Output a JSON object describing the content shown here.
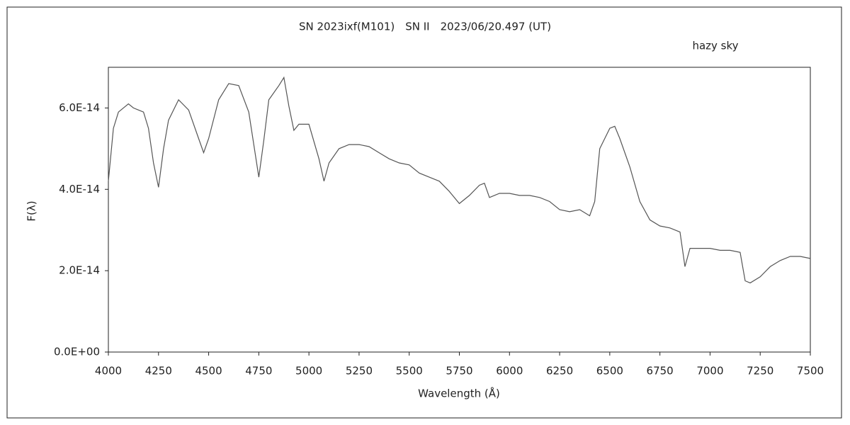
{
  "chart_data": {
    "type": "line",
    "title": "SN 2023ixf(M101)　SN II　2023/06/20.497 (UT)",
    "annotation": "hazy sky",
    "x_label": "Wavelength (Å)",
    "y_label": "F(λ)",
    "xlim": [
      4000,
      7500
    ],
    "xticks": [
      4000,
      4250,
      4500,
      4750,
      5000,
      5250,
      5500,
      5750,
      6000,
      6250,
      6500,
      6750,
      7000,
      7250,
      7500
    ],
    "ylim": [
      0,
      7e-14
    ],
    "yticks": [
      {
        "value": 0,
        "label": "0.0E+00"
      },
      {
        "value": 2e-14,
        "label": "2.0E-14"
      },
      {
        "value": 4e-14,
        "label": "4.0E-14"
      },
      {
        "value": 6e-14,
        "label": "6.0E-14"
      }
    ],
    "color": "#555555",
    "x": [
      4000,
      4025,
      4050,
      4075,
      4100,
      4125,
      4150,
      4175,
      4200,
      4225,
      4250,
      4275,
      4300,
      4350,
      4400,
      4450,
      4475,
      4500,
      4550,
      4600,
      4650,
      4700,
      4750,
      4775,
      4800,
      4850,
      4875,
      4900,
      4925,
      4950,
      5000,
      5050,
      5075,
      5100,
      5150,
      5200,
      5250,
      5300,
      5350,
      5400,
      5450,
      5500,
      5550,
      5600,
      5650,
      5700,
      5750,
      5800,
      5850,
      5875,
      5900,
      5950,
      6000,
      6050,
      6100,
      6150,
      6200,
      6250,
      6300,
      6350,
      6400,
      6425,
      6450,
      6500,
      6525,
      6550,
      6600,
      6650,
      6700,
      6750,
      6800,
      6850,
      6875,
      6900,
      6950,
      7000,
      7050,
      7100,
      7150,
      7175,
      7200,
      7250,
      7300,
      7350,
      7400,
      7450,
      7500
    ],
    "values": [
      4.2e-14,
      5.5e-14,
      5.9e-14,
      6e-14,
      6.1e-14,
      6e-14,
      5.95e-14,
      5.9e-14,
      5.5e-14,
      4.65e-14,
      4.05e-14,
      5e-14,
      5.7e-14,
      6.2e-14,
      5.95e-14,
      5.25e-14,
      4.9e-14,
      5.25e-14,
      6.2e-14,
      6.6e-14,
      6.55e-14,
      5.9e-14,
      4.3e-14,
      5.2e-14,
      6.2e-14,
      6.55e-14,
      6.75e-14,
      6.05e-14,
      5.45e-14,
      5.6e-14,
      5.6e-14,
      4.75e-14,
      4.2e-14,
      4.65e-14,
      5e-14,
      5.1e-14,
      5.1e-14,
      5.05e-14,
      4.9e-14,
      4.75e-14,
      4.65e-14,
      4.6e-14,
      4.4e-14,
      4.3e-14,
      4.2e-14,
      3.95e-14,
      3.65e-14,
      3.85e-14,
      4.1e-14,
      4.15e-14,
      3.8e-14,
      3.9e-14,
      3.9e-14,
      3.85e-14,
      3.85e-14,
      3.8e-14,
      3.7e-14,
      3.5e-14,
      3.45e-14,
      3.5e-14,
      3.35e-14,
      3.7e-14,
      5e-14,
      5.5e-14,
      5.55e-14,
      5.25e-14,
      4.55e-14,
      3.7e-14,
      3.25e-14,
      3.1e-14,
      3.05e-14,
      2.95e-14,
      2.1e-14,
      2.55e-14,
      2.55e-14,
      2.55e-14,
      2.5e-14,
      2.5e-14,
      2.45e-14,
      1.75e-14,
      1.7e-14,
      1.85e-14,
      2.1e-14,
      2.25e-14,
      2.35e-14,
      2.35e-14,
      2.3e-14
    ]
  }
}
